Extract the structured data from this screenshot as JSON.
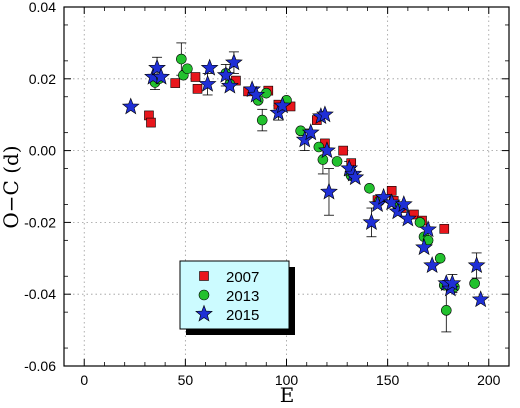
{
  "chart_data": {
    "type": "scatter",
    "title": "",
    "xlabel": "E",
    "ylabel": "O−C (d)",
    "xlim": [
      -10,
      210
    ],
    "ylim": [
      -0.06,
      0.04
    ],
    "xticks": [
      0,
      50,
      100,
      150,
      200
    ],
    "xtick_labels": [
      "0",
      "50",
      "100",
      "150",
      "200"
    ],
    "yticks": [
      -0.06,
      -0.04,
      -0.02,
      0.0,
      0.02,
      0.04
    ],
    "ytick_labels": [
      "-0.06",
      "-0.04",
      "-0.02",
      "0.00",
      "0.02",
      "0.04"
    ],
    "grid": true,
    "legend_position": "lower-left",
    "series": [
      {
        "name": "2007",
        "marker": "square",
        "color": "#e8161c",
        "points": [
          {
            "x": 32,
            "y": 0.0098
          },
          {
            "x": 33,
            "y": 0.0078
          },
          {
            "x": 45,
            "y": 0.0188
          },
          {
            "x": 55,
            "y": 0.0205
          },
          {
            "x": 56,
            "y": 0.0172
          },
          {
            "x": 75,
            "y": 0.0195
          },
          {
            "x": 81,
            "y": 0.0165
          },
          {
            "x": 91,
            "y": 0.0167
          },
          {
            "x": 96,
            "y": 0.0128
          },
          {
            "x": 102,
            "y": 0.0123
          },
          {
            "x": 115,
            "y": 0.0085
          },
          {
            "x": 119,
            "y": 0.002
          },
          {
            "x": 128,
            "y": 0.0
          },
          {
            "x": 132,
            "y": -0.0035
          },
          {
            "x": 145,
            "y": -0.0138
          },
          {
            "x": 152,
            "y": -0.0112
          },
          {
            "x": 153,
            "y": -0.014
          },
          {
            "x": 157,
            "y": -0.016
          },
          {
            "x": 163,
            "y": -0.0178
          },
          {
            "x": 167,
            "y": -0.0195
          },
          {
            "x": 178,
            "y": -0.0218
          }
        ]
      },
      {
        "name": "2013",
        "marker": "circle",
        "color": "#22c12e",
        "points": [
          {
            "x": 35,
            "y": 0.019,
            "err": 0.002
          },
          {
            "x": 37,
            "y": 0.02
          },
          {
            "x": 48,
            "y": 0.0255,
            "err": 0.0045
          },
          {
            "x": 49,
            "y": 0.021
          },
          {
            "x": 51,
            "y": 0.0228
          },
          {
            "x": 70,
            "y": 0.0215
          },
          {
            "x": 72,
            "y": 0.0185
          },
          {
            "x": 86,
            "y": 0.014
          },
          {
            "x": 88,
            "y": 0.0085,
            "err": 0.003
          },
          {
            "x": 90,
            "y": 0.016
          },
          {
            "x": 100,
            "y": 0.014
          },
          {
            "x": 107,
            "y": 0.0055
          },
          {
            "x": 116,
            "y": 0.001
          },
          {
            "x": 118,
            "y": -0.0025,
            "err": 0.004
          },
          {
            "x": 125,
            "y": -0.003
          },
          {
            "x": 132,
            "y": -0.007
          },
          {
            "x": 141,
            "y": -0.0105
          },
          {
            "x": 146,
            "y": -0.014
          },
          {
            "x": 155,
            "y": -0.0155
          },
          {
            "x": 166,
            "y": -0.02
          },
          {
            "x": 168,
            "y": -0.024
          },
          {
            "x": 170,
            "y": -0.025
          },
          {
            "x": 176,
            "y": -0.03
          },
          {
            "x": 178,
            "y": -0.0375
          },
          {
            "x": 179,
            "y": -0.0445,
            "err": 0.006
          },
          {
            "x": 183,
            "y": -0.038
          },
          {
            "x": 193,
            "y": -0.037
          }
        ]
      },
      {
        "name": "2015",
        "marker": "star",
        "color": "#1f2fd6",
        "points": [
          {
            "x": 23,
            "y": 0.0122
          },
          {
            "x": 34,
            "y": 0.0205
          },
          {
            "x": 36,
            "y": 0.023,
            "err": 0.003
          },
          {
            "x": 38,
            "y": 0.0205
          },
          {
            "x": 61,
            "y": 0.0185,
            "err": 0.003
          },
          {
            "x": 62,
            "y": 0.023
          },
          {
            "x": 70,
            "y": 0.021,
            "err": 0.003
          },
          {
            "x": 72,
            "y": 0.018
          },
          {
            "x": 74,
            "y": 0.0245,
            "err": 0.003
          },
          {
            "x": 83,
            "y": 0.017
          },
          {
            "x": 85,
            "y": 0.0155
          },
          {
            "x": 96,
            "y": 0.0105,
            "err": 0.002
          },
          {
            "x": 98,
            "y": 0.0125
          },
          {
            "x": 109,
            "y": 0.003,
            "err": 0.003
          },
          {
            "x": 112,
            "y": 0.005
          },
          {
            "x": 117,
            "y": 0.0095
          },
          {
            "x": 119,
            "y": 0.01
          },
          {
            "x": 120,
            "y": 0.0
          },
          {
            "x": 121,
            "y": -0.0115,
            "err": 0.0065
          },
          {
            "x": 131,
            "y": -0.005,
            "err": 0.002
          },
          {
            "x": 133,
            "y": -0.0065
          },
          {
            "x": 134,
            "y": -0.0075
          },
          {
            "x": 142,
            "y": -0.02,
            "err": 0.004
          },
          {
            "x": 145,
            "y": -0.015
          },
          {
            "x": 148,
            "y": -0.013
          },
          {
            "x": 152,
            "y": -0.0145
          },
          {
            "x": 155,
            "y": -0.017
          },
          {
            "x": 158,
            "y": -0.015
          },
          {
            "x": 160,
            "y": -0.019
          },
          {
            "x": 168,
            "y": -0.027
          },
          {
            "x": 170,
            "y": -0.022
          },
          {
            "x": 172,
            "y": -0.032
          },
          {
            "x": 179,
            "y": -0.037
          },
          {
            "x": 181,
            "y": -0.0385
          },
          {
            "x": 182,
            "y": -0.037,
            "err": 0.0025
          },
          {
            "x": 194,
            "y": -0.032,
            "err": 0.0035
          },
          {
            "x": 196,
            "y": -0.0415
          }
        ]
      }
    ]
  }
}
